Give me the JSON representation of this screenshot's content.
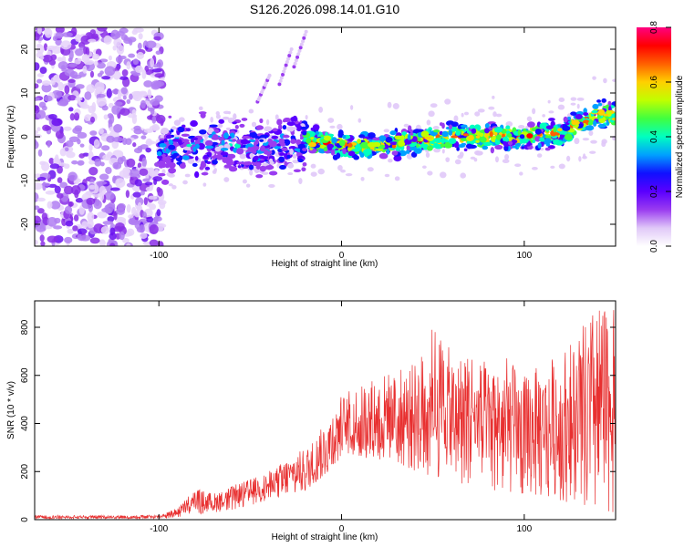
{
  "figure_title": "S126.2026.098.14.01.G10",
  "chart_data": [
    {
      "type": "heatmap",
      "title": "S126.2026.098.14.01.G10",
      "xlabel": "Height of straight line (km)",
      "ylabel": "Frequency (Hz)",
      "xlim": [
        -168,
        150
      ],
      "ylim": [
        -25,
        25
      ],
      "xticks": [
        "-100",
        "0",
        "100"
      ],
      "yticks": [
        "-20",
        "-10",
        "0",
        "10",
        "20"
      ],
      "colorbar": {
        "label": "Normalized spectral amplitude",
        "range": [
          0,
          0.8
        ],
        "ticks": [
          "0.0",
          "0.2",
          "0.4",
          "0.6",
          "0.8"
        ],
        "colors": [
          "#ffffff",
          "#e0c8f8",
          "#9a3cf0",
          "#5a00ff",
          "#1010ff",
          "#00a0ff",
          "#00ffc0",
          "#40ff40",
          "#c0ff00",
          "#ffd000",
          "#ff6000",
          "#ff0000",
          "#ff0080"
        ]
      },
      "ridge": {
        "x": [
          -100,
          -80,
          -60,
          -40,
          -20,
          0,
          20,
          40,
          60,
          80,
          100,
          120,
          140
        ],
        "freq": [
          -3,
          -2,
          -2,
          -3,
          -1,
          -2,
          -2,
          -1,
          0,
          0,
          0,
          1,
          5
        ]
      }
    },
    {
      "type": "line",
      "xlabel": "Height of straight line (km)",
      "ylabel": "SNR (10 * v/v)",
      "xlim": [
        -168,
        150
      ],
      "ylim": [
        0,
        910
      ],
      "xticks": [
        "-100",
        "0",
        "100"
      ],
      "yticks": [
        "0",
        "200",
        "400",
        "600",
        "800"
      ],
      "series": [
        {
          "name": "SNR",
          "color": "#e83030",
          "x": [
            -168,
            -150,
            -120,
            -100,
            -90,
            -80,
            -70,
            -60,
            -50,
            -40,
            -30,
            -20,
            -10,
            0,
            10,
            20,
            30,
            40,
            50,
            60,
            70,
            80,
            90,
            100,
            110,
            120,
            130,
            140,
            150
          ],
          "upper": [
            18,
            18,
            18,
            20,
            50,
            130,
            110,
            140,
            170,
            200,
            250,
            300,
            390,
            520,
            560,
            600,
            620,
            650,
            820,
            700,
            720,
            650,
            680,
            600,
            650,
            700,
            780,
            900,
            870
          ],
          "lower": [
            4,
            4,
            4,
            4,
            10,
            20,
            30,
            40,
            60,
            80,
            100,
            120,
            180,
            250,
            250,
            250,
            240,
            200,
            180,
            150,
            150,
            120,
            120,
            100,
            100,
            80,
            60,
            40,
            30
          ]
        }
      ]
    }
  ]
}
